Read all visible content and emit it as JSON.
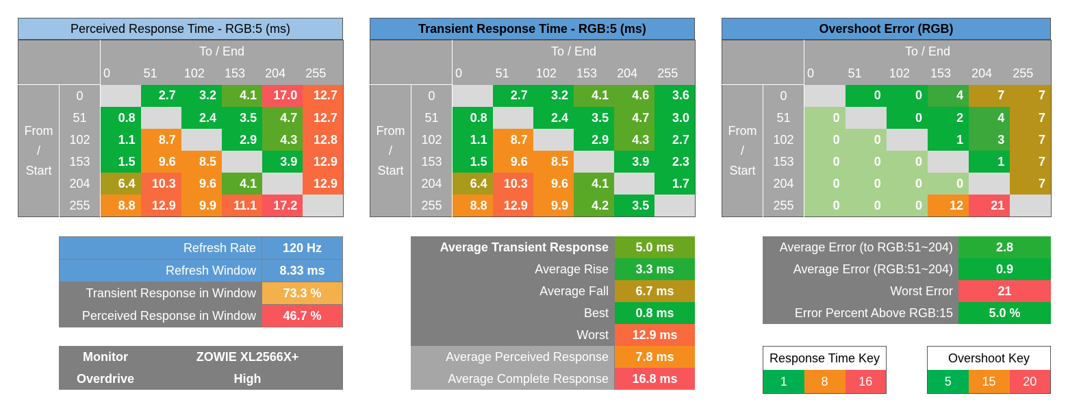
{
  "matrices": [
    {
      "title": "Perceived Response Time - RGB:5 (ms)",
      "title_bold": false,
      "title_bg": "#9dc3e6",
      "scale": "time",
      "to_end_label": "To / End",
      "from_label": [
        "From",
        "/",
        "Start"
      ],
      "levels": [
        "0",
        "51",
        "102",
        "153",
        "204",
        "255"
      ],
      "rows": [
        [
          "",
          "2.7",
          "3.2",
          "4.1",
          "17.0",
          "12.7"
        ],
        [
          "0.8",
          "",
          "2.4",
          "3.5",
          "4.7",
          "12.7"
        ],
        [
          "1.1",
          "8.7",
          "",
          "2.9",
          "4.3",
          "12.8"
        ],
        [
          "1.5",
          "9.6",
          "8.5",
          "",
          "3.9",
          "12.9"
        ],
        [
          "6.4",
          "10.3",
          "9.6",
          "4.1",
          "",
          "12.9"
        ],
        [
          "8.8",
          "12.9",
          "9.9",
          "11.1",
          "17.2",
          ""
        ]
      ]
    },
    {
      "title": "Transient Response Time - RGB:5 (ms)",
      "title_bold": true,
      "title_bg": "#5b9bd5",
      "scale": "time",
      "to_end_label": "To / End",
      "from_label": [
        "From",
        "/",
        "Start"
      ],
      "levels": [
        "0",
        "51",
        "102",
        "153",
        "204",
        "255"
      ],
      "rows": [
        [
          "",
          "2.7",
          "3.2",
          "4.1",
          "4.6",
          "3.6"
        ],
        [
          "0.8",
          "",
          "2.4",
          "3.5",
          "4.7",
          "3.0"
        ],
        [
          "1.1",
          "8.7",
          "",
          "2.9",
          "4.3",
          "2.7"
        ],
        [
          "1.5",
          "9.6",
          "8.5",
          "",
          "3.9",
          "2.3"
        ],
        [
          "6.4",
          "10.3",
          "9.6",
          "4.1",
          "",
          "1.7"
        ],
        [
          "8.8",
          "12.9",
          "9.9",
          "4.2",
          "3.5",
          ""
        ]
      ]
    },
    {
      "title": "Overshoot Error (RGB)",
      "title_bold": true,
      "title_bg": "#5b9bd5",
      "scale": "overshoot",
      "to_end_label": "To / End",
      "from_label": [
        "From",
        "/",
        "Start"
      ],
      "levels": [
        "0",
        "51",
        "102",
        "153",
        "204",
        "255"
      ],
      "rows": [
        [
          "",
          "0",
          "0",
          "4",
          "7",
          "7"
        ],
        [
          "0",
          "",
          "0",
          "2",
          "4",
          "7"
        ],
        [
          "0",
          "0",
          "",
          "1",
          "3",
          "7"
        ],
        [
          "0",
          "0",
          "0",
          "",
          "1",
          "7"
        ],
        [
          "0",
          "0",
          "0",
          "0",
          "",
          "7"
        ],
        [
          "0",
          "0",
          "0",
          "12",
          "21",
          ""
        ]
      ]
    }
  ],
  "refresh_table": [
    {
      "label": "Refresh Rate",
      "value": "120 Hz",
      "label_bg": "#5b9bd5",
      "value_bg": "#5b9bd5"
    },
    {
      "label": "Refresh Window",
      "value": "8.33 ms",
      "label_bg": "#5b9bd5",
      "value_bg": "#5b9bd5"
    },
    {
      "label": "Transient Response in Window",
      "value": "73.3 %",
      "label_bg": "#7f7f7f",
      "value_bg": "#f4b04a"
    },
    {
      "label": "Perceived Response in Window",
      "value": "46.7 %",
      "label_bg": "#7f7f7f",
      "value_bg": "#f8565a"
    }
  ],
  "monitor_table": [
    {
      "label": "Monitor",
      "value": "ZOWIE XL2566X+"
    },
    {
      "label": "Overdrive",
      "value": "High"
    }
  ],
  "response_table": [
    {
      "label": "Average Transient Response",
      "value": "5.0 ms",
      "bold_label": true,
      "label_bg": "#7f7f7f",
      "value_bg": "#6aa61f"
    },
    {
      "label": "Average Rise",
      "value": "3.3 ms",
      "bold_label": false,
      "label_bg": "#7f7f7f",
      "value_bg": "#22ad38"
    },
    {
      "label": "Average Fall",
      "value": "6.7 ms",
      "bold_label": false,
      "label_bg": "#7f7f7f",
      "value_bg": "#b8931a"
    },
    {
      "label": "Best",
      "value": "0.8 ms",
      "bold_label": false,
      "label_bg": "#7f7f7f",
      "value_bg": "#0aad3a"
    },
    {
      "label": "Worst",
      "value": "12.9 ms",
      "bold_label": false,
      "label_bg": "#7f7f7f",
      "value_bg": "#f96a3f"
    },
    {
      "label": "Average Perceived Response",
      "value": "7.8 ms",
      "bold_label": false,
      "label_bg": "#a6a6a6",
      "value_bg": "#f58d1e"
    },
    {
      "label": "Average Complete Response",
      "value": "16.8 ms",
      "bold_label": false,
      "label_bg": "#a6a6a6",
      "value_bg": "#f8565a"
    }
  ],
  "error_table": [
    {
      "label": "Average Error (to RGB:51~204)",
      "value": "2.8",
      "value_bg": "#26ad36"
    },
    {
      "label": "Average Error (RGB:51~204)",
      "value": "0.9",
      "value_bg": "#08ad3a"
    },
    {
      "label": "Worst Error",
      "value": "21",
      "value_bg": "#f8565a"
    },
    {
      "label": "Error Percent Above RGB:15",
      "value": "5.0 %",
      "value_bg": "#08ad3a"
    }
  ],
  "response_key": {
    "title": "Response Time Key",
    "values": [
      "1",
      "8",
      "16"
    ],
    "colors": [
      "#00b050",
      "#f58d1e",
      "#f8565a"
    ]
  },
  "overshoot_key": {
    "title": "Overshoot Key",
    "values": [
      "5",
      "15",
      "20"
    ],
    "colors": [
      "#00b050",
      "#f58d1e",
      "#f8565a"
    ]
  },
  "chart_data": [
    {
      "type": "heatmap",
      "title": "Perceived Response Time - RGB:5 (ms)",
      "xlabel": "To / End",
      "ylabel": "From / Start",
      "x": [
        0,
        51,
        102,
        153,
        204,
        255
      ],
      "y": [
        0,
        51,
        102,
        153,
        204,
        255
      ],
      "values": [
        [
          null,
          2.7,
          3.2,
          4.1,
          17.0,
          12.7
        ],
        [
          0.8,
          null,
          2.4,
          3.5,
          4.7,
          12.7
        ],
        [
          1.1,
          8.7,
          null,
          2.9,
          4.3,
          12.8
        ],
        [
          1.5,
          9.6,
          8.5,
          null,
          3.9,
          12.9
        ],
        [
          6.4,
          10.3,
          9.6,
          4.1,
          null,
          12.9
        ],
        [
          8.8,
          12.9,
          9.9,
          11.1,
          17.2,
          null
        ]
      ]
    },
    {
      "type": "heatmap",
      "title": "Transient Response Time - RGB:5 (ms)",
      "xlabel": "To / End",
      "ylabel": "From / Start",
      "x": [
        0,
        51,
        102,
        153,
        204,
        255
      ],
      "y": [
        0,
        51,
        102,
        153,
        204,
        255
      ],
      "values": [
        [
          null,
          2.7,
          3.2,
          4.1,
          4.6,
          3.6
        ],
        [
          0.8,
          null,
          2.4,
          3.5,
          4.7,
          3.0
        ],
        [
          1.1,
          8.7,
          null,
          2.9,
          4.3,
          2.7
        ],
        [
          1.5,
          9.6,
          8.5,
          null,
          3.9,
          2.3
        ],
        [
          6.4,
          10.3,
          9.6,
          4.1,
          null,
          1.7
        ],
        [
          8.8,
          12.9,
          9.9,
          4.2,
          3.5,
          null
        ]
      ]
    },
    {
      "type": "heatmap",
      "title": "Overshoot Error (RGB)",
      "xlabel": "To / End",
      "ylabel": "From / Start",
      "x": [
        0,
        51,
        102,
        153,
        204,
        255
      ],
      "y": [
        0,
        51,
        102,
        153,
        204,
        255
      ],
      "values": [
        [
          null,
          0,
          0,
          4,
          7,
          7
        ],
        [
          0,
          null,
          0,
          2,
          4,
          7
        ],
        [
          0,
          0,
          null,
          1,
          3,
          7
        ],
        [
          0,
          0,
          0,
          null,
          1,
          7
        ],
        [
          0,
          0,
          0,
          0,
          null,
          7
        ],
        [
          0,
          0,
          0,
          12,
          21,
          null
        ]
      ]
    }
  ]
}
